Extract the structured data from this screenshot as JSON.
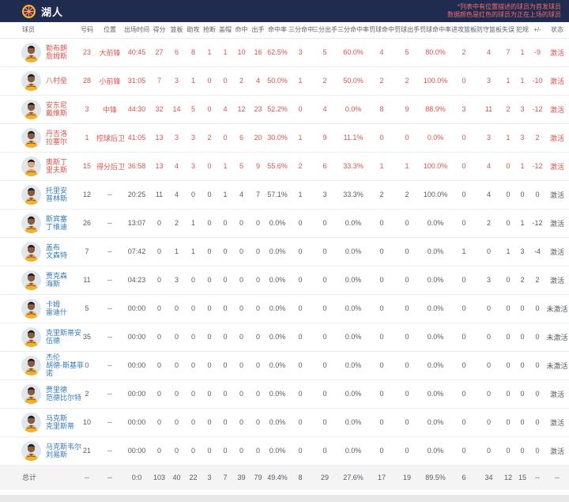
{
  "header": {
    "team_name": "湖人",
    "legend_line1": "*列表中有位置描述的球员为首发球员",
    "legend_line2": "数据颜色是红色的球员为正在上场的球员"
  },
  "colors": {
    "header_bg": "#202c4f",
    "on_court_red": "#dd524c",
    "link_blue": "#3679bd",
    "legend_red": "#f56b6b",
    "lakers_gold": "#fdb927",
    "lakers_purple": "#552583"
  },
  "table": {
    "columns": [
      "球员",
      "号码",
      "位置",
      "出场时间",
      "得分",
      "篮板",
      "助攻",
      "抢断",
      "盖帽",
      "命中",
      "出手",
      "命中率",
      "三分命中",
      "三分出手",
      "三分命中率",
      "罚球命中",
      "罚球出手",
      "罚球命中率",
      "进攻篮板",
      "防守篮板",
      "失误",
      "犯规",
      "+/-",
      "状态"
    ],
    "players": [
      {
        "name": "勒布朗·詹姆斯",
        "name_lines": [
          "勒布朗",
          "詹姆斯"
        ],
        "on_court": true,
        "skin": "dark",
        "stats": [
          "23",
          "大前锋",
          "40:45",
          "27",
          "6",
          "8",
          "1",
          "1",
          "10",
          "16",
          "62.5%",
          "3",
          "5",
          "60.0%",
          "4",
          "5",
          "80.0%",
          "2",
          "4",
          "7",
          "1",
          "-9",
          "激活"
        ]
      },
      {
        "name": "八村垒",
        "name_lines": [
          "八村垒"
        ],
        "on_court": true,
        "skin": "dark",
        "stats": [
          "28",
          "小前锋",
          "31:05",
          "7",
          "3",
          "1",
          "0",
          "0",
          "2",
          "4",
          "50.0%",
          "1",
          "2",
          "50.0%",
          "2",
          "2",
          "100.0%",
          "0",
          "3",
          "1",
          "1",
          "-10",
          "激活"
        ]
      },
      {
        "name": "安东尼·戴维斯",
        "name_lines": [
          "安东尼",
          "戴维斯"
        ],
        "on_court": true,
        "skin": "dark",
        "stats": [
          "3",
          "中锋",
          "44:30",
          "32",
          "14",
          "5",
          "0",
          "4",
          "12",
          "23",
          "52.2%",
          "0",
          "4",
          "0.0%",
          "8",
          "9",
          "88.9%",
          "3",
          "11",
          "2",
          "3",
          "-12",
          "激活"
        ]
      },
      {
        "name": "丹吉洛·拉塞尔",
        "name_lines": [
          "丹吉洛",
          "拉塞尔"
        ],
        "on_court": true,
        "skin": "dark",
        "stats": [
          "1",
          "控球后卫",
          "41:05",
          "13",
          "3",
          "3",
          "2",
          "0",
          "6",
          "20",
          "30.0%",
          "1",
          "9",
          "11.1%",
          "0",
          "0",
          "0.0%",
          "0",
          "3",
          "1",
          "3",
          "2",
          "激活"
        ]
      },
      {
        "name": "奥斯丁·里夫斯",
        "name_lines": [
          "奥斯丁",
          "里夫斯"
        ],
        "on_court": true,
        "skin": "light",
        "stats": [
          "15",
          "得分后卫",
          "36:58",
          "13",
          "4",
          "3",
          "0",
          "1",
          "5",
          "9",
          "55.6%",
          "2",
          "6",
          "33.3%",
          "1",
          "1",
          "100.0%",
          "0",
          "4",
          "0",
          "1",
          "-12",
          "激活"
        ]
      },
      {
        "name": "托里安·普林斯",
        "name_lines": [
          "托里安",
          "普林斯"
        ],
        "on_court": false,
        "skin": "dark",
        "stats": [
          "12",
          "--",
          "20:25",
          "11",
          "4",
          "0",
          "0",
          "1",
          "4",
          "7",
          "57.1%",
          "1",
          "3",
          "33.3%",
          "2",
          "2",
          "100.0%",
          "0",
          "4",
          "0",
          "0",
          "0",
          "激活"
        ]
      },
      {
        "name": "斯宾塞·丁维迪",
        "name_lines": [
          "斯宾塞",
          "丁维迪"
        ],
        "on_court": false,
        "skin": "dark",
        "stats": [
          "26",
          "--",
          "13:07",
          "0",
          "2",
          "1",
          "0",
          "0",
          "0",
          "0",
          "0.0%",
          "0",
          "0",
          "0.0%",
          "0",
          "0",
          "0.0%",
          "0",
          "2",
          "0",
          "1",
          "-12",
          "激活"
        ]
      },
      {
        "name": "盖布·文森特",
        "name_lines": [
          "盖布",
          "文森特"
        ],
        "on_court": false,
        "skin": "dark",
        "stats": [
          "7",
          "--",
          "07:42",
          "0",
          "1",
          "1",
          "0",
          "0",
          "0",
          "0",
          "0.0%",
          "0",
          "0",
          "0.0%",
          "0",
          "0",
          "0.0%",
          "1",
          "0",
          "1",
          "3",
          "-4",
          "激活"
        ]
      },
      {
        "name": "贾克森·海斯",
        "name_lines": [
          "贾克森",
          "海斯"
        ],
        "on_court": false,
        "skin": "dark",
        "stats": [
          "11",
          "--",
          "04:23",
          "0",
          "3",
          "0",
          "0",
          "0",
          "0",
          "0",
          "0.0%",
          "0",
          "0",
          "0.0%",
          "0",
          "0",
          "0.0%",
          "0",
          "3",
          "0",
          "2",
          "2",
          "激活"
        ]
      },
      {
        "name": "卡姆·雷迪什",
        "name_lines": [
          "卡姆",
          "雷迪什"
        ],
        "on_court": false,
        "skin": "dark",
        "stats": [
          "5",
          "--",
          "00:00",
          "0",
          "0",
          "0",
          "0",
          "0",
          "0",
          "0",
          "0.0%",
          "0",
          "0",
          "0.0%",
          "0",
          "0",
          "0.0%",
          "0",
          "0",
          "0",
          "0",
          "0",
          "未激活"
        ]
      },
      {
        "name": "克里斯蒂安·伍德",
        "name_lines": [
          "克里斯蒂安",
          "伍德"
        ],
        "on_court": false,
        "skin": "dark",
        "stats": [
          "35",
          "--",
          "00:00",
          "0",
          "0",
          "0",
          "0",
          "0",
          "0",
          "0",
          "0.0%",
          "0",
          "0",
          "0.0%",
          "0",
          "0",
          "0.0%",
          "0",
          "0",
          "0",
          "0",
          "0",
          "未激活"
        ]
      },
      {
        "name": "杰伦·胡德-斯基菲诺",
        "name_lines": [
          "杰伦",
          "胡德-斯基菲",
          "诺"
        ],
        "on_court": false,
        "skin": "dark",
        "stats": [
          "0",
          "--",
          "00:00",
          "0",
          "0",
          "0",
          "0",
          "0",
          "0",
          "0",
          "0.0%",
          "0",
          "0",
          "0.0%",
          "0",
          "0",
          "0.0%",
          "0",
          "0",
          "0",
          "0",
          "0",
          "未激活"
        ]
      },
      {
        "name": "贾里德·范德比尔特",
        "name_lines": [
          "贾里德",
          "范德比尔特"
        ],
        "on_court": false,
        "skin": "dark",
        "stats": [
          "2",
          "--",
          "00:00",
          "0",
          "0",
          "0",
          "0",
          "0",
          "0",
          "0",
          "0.0%",
          "0",
          "0",
          "0.0%",
          "0",
          "0",
          "0.0%",
          "0",
          "0",
          "0",
          "0",
          "0",
          "激活"
        ]
      },
      {
        "name": "马克斯·克里斯蒂",
        "name_lines": [
          "马克斯",
          "克里斯蒂"
        ],
        "on_court": false,
        "skin": "dark",
        "stats": [
          "10",
          "--",
          "00:00",
          "0",
          "0",
          "0",
          "0",
          "0",
          "0",
          "0",
          "0.0%",
          "0",
          "0",
          "0.0%",
          "0",
          "0",
          "0.0%",
          "0",
          "0",
          "0",
          "0",
          "0",
          "激活"
        ]
      },
      {
        "name": "马克斯韦尔·刘易斯",
        "name_lines": [
          "马克斯韦尔",
          "刘易斯"
        ],
        "on_court": false,
        "skin": "dark",
        "stats": [
          "21",
          "--",
          "00:00",
          "0",
          "0",
          "0",
          "0",
          "0",
          "0",
          "0",
          "0.0%",
          "0",
          "0",
          "0.0%",
          "0",
          "0",
          "0.0%",
          "0",
          "0",
          "0",
          "0",
          "0",
          "激活"
        ]
      }
    ],
    "totals": {
      "label": "总计",
      "stats": [
        "--",
        "--",
        "0:0",
        "103",
        "40",
        "22",
        "3",
        "7",
        "39",
        "79",
        "49.4%",
        "8",
        "29",
        "27.6%",
        "17",
        "19",
        "89.5%",
        "6",
        "34",
        "12",
        "15",
        "--",
        "--"
      ]
    }
  }
}
